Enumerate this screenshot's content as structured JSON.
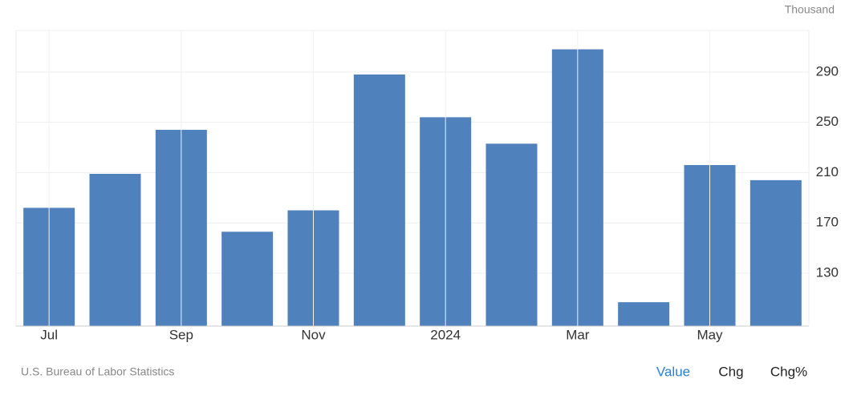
{
  "chart_data": {
    "type": "bar",
    "unit": "Thousand",
    "categories": [
      "Jul",
      null,
      "Sep",
      null,
      "Nov",
      null,
      "2024",
      null,
      "Mar",
      null,
      "May",
      null
    ],
    "values": [
      182,
      209,
      244,
      163,
      180,
      288,
      254,
      233,
      308,
      107,
      216,
      204
    ],
    "color": "#4f81bd",
    "ylim": [
      88,
      323
    ],
    "yticks": [
      130,
      170,
      210,
      250,
      290
    ],
    "grid": true,
    "source": "U.S. Bureau of Labor Statistics",
    "tabs": [
      "Value",
      "Chg",
      "Chg%"
    ]
  }
}
